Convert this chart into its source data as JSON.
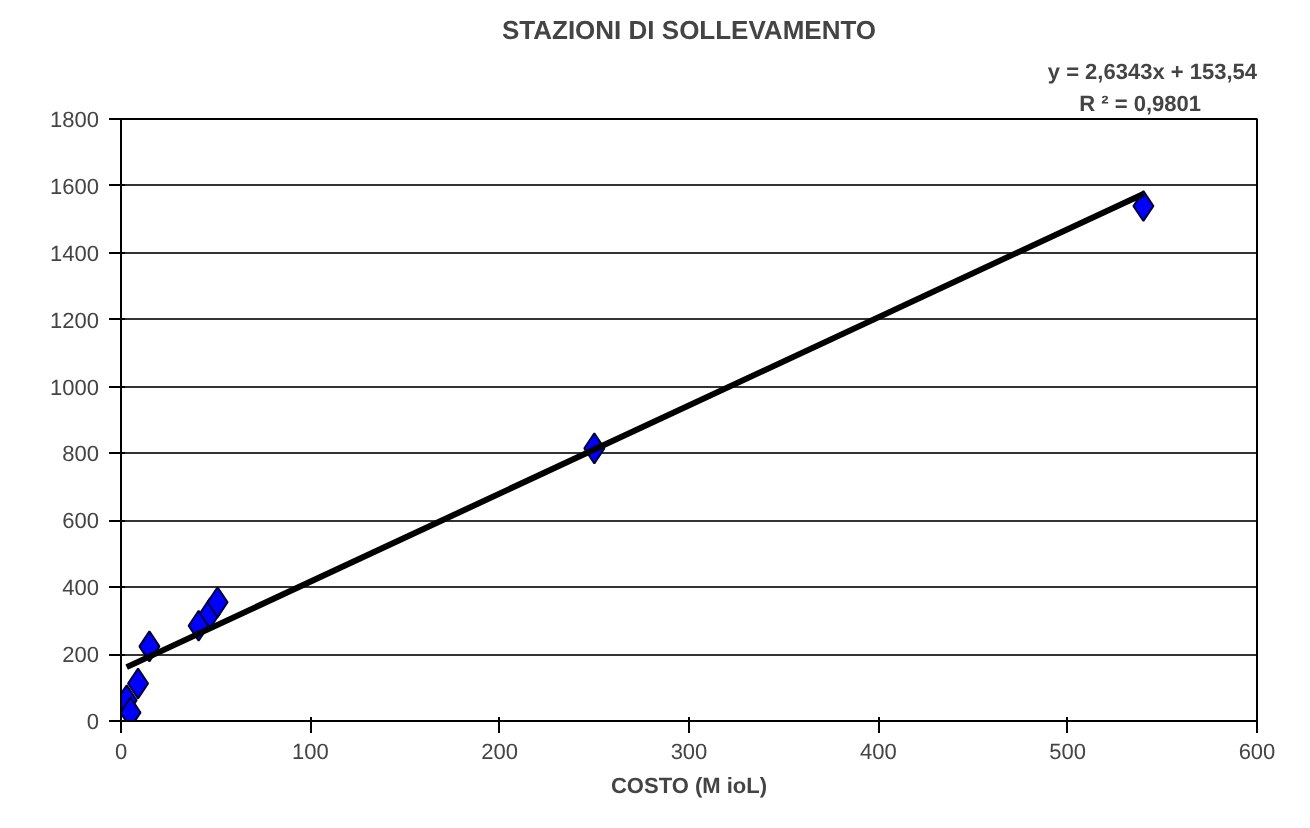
{
  "chart_data": {
    "type": "scatter",
    "title": "STAZIONI DI SOLLEVAMENTO",
    "xlabel": "COSTO (M ioL)",
    "xlim": [
      0,
      600
    ],
    "xticks": [
      0,
      100,
      200,
      300,
      400,
      500,
      600
    ],
    "ylim": [
      0,
      1800
    ],
    "yticks": [
      0,
      200,
      400,
      600,
      800,
      1000,
      1200,
      1400,
      1600,
      1800
    ],
    "grid": "y",
    "annotations": [
      "y = 2,6343x + 153,54",
      "R ² = 0,9801"
    ],
    "series": [
      {
        "marker": "diamond",
        "color": "#0000ff",
        "x": [
          3,
          5,
          9,
          15,
          41,
          47,
          51,
          250,
          540
        ],
        "values": [
          62,
          25,
          112,
          223,
          285,
          322,
          355,
          815,
          1540
        ]
      },
      {
        "type": "line",
        "color": "#000000",
        "x": [
          3,
          540
        ],
        "values": [
          161,
          1576
        ]
      }
    ]
  }
}
